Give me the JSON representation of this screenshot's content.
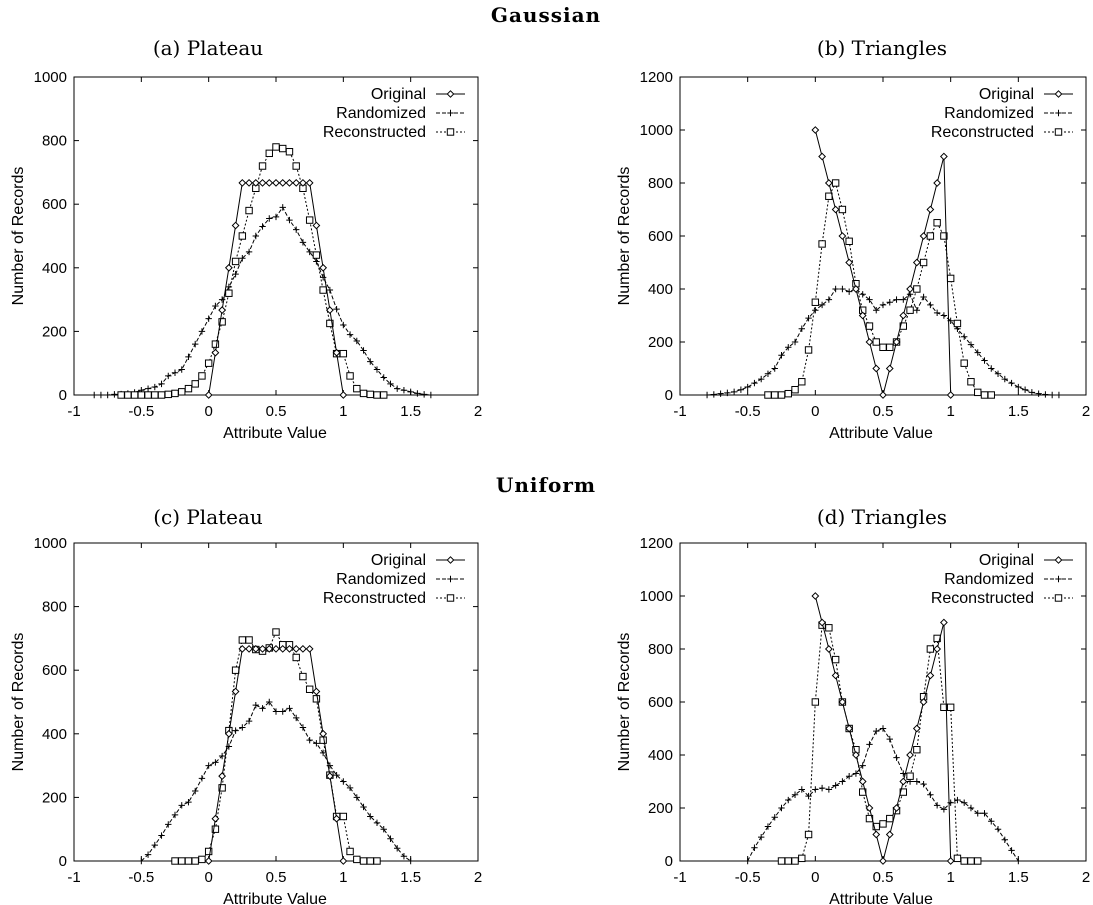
{
  "figure": {
    "section_titles": [
      "Gaussian",
      "Uniform"
    ]
  },
  "chart_data": [
    {
      "type": "line",
      "title": "(a) Plateau",
      "section": "Gaussian",
      "xlabel": "Attribute Value",
      "ylabel": "Number of Records",
      "xlim": [
        -1,
        2
      ],
      "ylim": [
        0,
        1000
      ],
      "xticks": [
        "-1",
        "-0.5",
        "0",
        "0.5",
        "1",
        "1.5",
        "2"
      ],
      "yticks": [
        "0",
        "200",
        "400",
        "600",
        "800",
        "1000"
      ],
      "legend_position": "top-right",
      "series": [
        {
          "name": "Original",
          "marker": "diamond",
          "dash": "solid",
          "x": [
            0,
            0.05,
            0.1,
            0.15,
            0.2,
            0.25,
            0.3,
            0.35,
            0.4,
            0.45,
            0.5,
            0.55,
            0.6,
            0.65,
            0.7,
            0.75,
            0.8,
            0.85,
            0.9,
            0.95,
            1.0
          ],
          "y": [
            0,
            133,
            267,
            400,
            533,
            667,
            667,
            667,
            667,
            667,
            667,
            667,
            667,
            667,
            667,
            667,
            533,
            400,
            267,
            133,
            0
          ]
        },
        {
          "name": "Randomized",
          "marker": "plus",
          "dash": "dashed",
          "x": [
            -0.85,
            -0.8,
            -0.75,
            -0.7,
            -0.65,
            -0.6,
            -0.55,
            -0.5,
            -0.45,
            -0.4,
            -0.35,
            -0.3,
            -0.25,
            -0.2,
            -0.15,
            -0.1,
            -0.05,
            0,
            0.05,
            0.1,
            0.15,
            0.2,
            0.25,
            0.3,
            0.35,
            0.4,
            0.45,
            0.5,
            0.55,
            0.6,
            0.65,
            0.7,
            0.75,
            0.8,
            0.85,
            0.9,
            0.95,
            1.0,
            1.05,
            1.1,
            1.15,
            1.2,
            1.25,
            1.3,
            1.35,
            1.4,
            1.45,
            1.5,
            1.55,
            1.6,
            1.65
          ],
          "y": [
            0,
            0,
            0,
            2,
            3,
            5,
            8,
            15,
            20,
            25,
            35,
            60,
            70,
            80,
            120,
            160,
            200,
            240,
            280,
            300,
            340,
            380,
            430,
            450,
            500,
            530,
            555,
            560,
            590,
            550,
            520,
            480,
            450,
            420,
            370,
            330,
            270,
            220,
            190,
            170,
            140,
            105,
            80,
            55,
            35,
            20,
            15,
            10,
            5,
            2,
            0
          ]
        },
        {
          "name": "Reconstructed",
          "marker": "square",
          "dash": "dotted",
          "x": [
            -0.65,
            -0.6,
            -0.55,
            -0.5,
            -0.45,
            -0.4,
            -0.35,
            -0.3,
            -0.25,
            -0.2,
            -0.15,
            -0.1,
            -0.05,
            0,
            0.05,
            0.1,
            0.15,
            0.2,
            0.25,
            0.3,
            0.35,
            0.4,
            0.45,
            0.5,
            0.55,
            0.6,
            0.65,
            0.7,
            0.75,
            0.8,
            0.85,
            0.9,
            0.95,
            1.0,
            1.05,
            1.1,
            1.15,
            1.2,
            1.25,
            1.3
          ],
          "y": [
            0,
            0,
            0,
            0,
            0,
            0,
            0,
            2,
            5,
            10,
            20,
            35,
            60,
            100,
            160,
            230,
            320,
            420,
            500,
            580,
            650,
            720,
            760,
            780,
            775,
            765,
            720,
            650,
            550,
            440,
            330,
            225,
            130,
            130,
            60,
            20,
            5,
            2,
            0,
            0
          ]
        }
      ]
    },
    {
      "type": "line",
      "title": "(b) Triangles",
      "section": "Gaussian",
      "xlabel": "Attribute Value",
      "ylabel": "Number of Records",
      "xlim": [
        -1,
        2
      ],
      "ylim": [
        0,
        1200
      ],
      "xticks": [
        "-1",
        "-0.5",
        "0",
        "0.5",
        "1",
        "1.5",
        "2"
      ],
      "yticks": [
        "0",
        "200",
        "400",
        "600",
        "800",
        "1000",
        "1200"
      ],
      "legend_position": "top-right",
      "series": [
        {
          "name": "Original",
          "marker": "diamond",
          "dash": "solid",
          "x": [
            0,
            0.05,
            0.1,
            0.15,
            0.2,
            0.25,
            0.3,
            0.35,
            0.4,
            0.45,
            0.5,
            0.55,
            0.6,
            0.65,
            0.7,
            0.75,
            0.8,
            0.85,
            0.9,
            0.95,
            1.0
          ],
          "y": [
            1000,
            900,
            800,
            700,
            600,
            500,
            400,
            300,
            200,
            100,
            0,
            100,
            200,
            300,
            400,
            500,
            600,
            700,
            800,
            900,
            0
          ]
        },
        {
          "name": "Randomized",
          "marker": "plus",
          "dash": "dashed",
          "x": [
            -0.8,
            -0.75,
            -0.7,
            -0.65,
            -0.6,
            -0.55,
            -0.5,
            -0.45,
            -0.4,
            -0.35,
            -0.3,
            -0.25,
            -0.2,
            -0.15,
            -0.1,
            -0.05,
            0,
            0.05,
            0.1,
            0.15,
            0.2,
            0.25,
            0.3,
            0.35,
            0.4,
            0.45,
            0.5,
            0.55,
            0.6,
            0.65,
            0.7,
            0.75,
            0.8,
            0.85,
            0.9,
            0.95,
            1.0,
            1.05,
            1.1,
            1.15,
            1.2,
            1.25,
            1.3,
            1.35,
            1.4,
            1.45,
            1.5,
            1.55,
            1.6,
            1.65,
            1.7,
            1.75,
            1.8
          ],
          "y": [
            0,
            2,
            5,
            8,
            12,
            20,
            30,
            45,
            60,
            80,
            100,
            150,
            180,
            200,
            250,
            290,
            320,
            340,
            360,
            400,
            400,
            390,
            400,
            380,
            360,
            320,
            340,
            350,
            360,
            360,
            380,
            320,
            370,
            340,
            310,
            300,
            280,
            250,
            220,
            190,
            160,
            130,
            100,
            80,
            60,
            45,
            30,
            20,
            10,
            5,
            2,
            0,
            0
          ]
        },
        {
          "name": "Reconstructed",
          "marker": "square",
          "dash": "dotted",
          "x": [
            -0.35,
            -0.3,
            -0.25,
            -0.2,
            -0.15,
            -0.1,
            -0.05,
            0,
            0.05,
            0.1,
            0.15,
            0.2,
            0.25,
            0.3,
            0.35,
            0.4,
            0.45,
            0.5,
            0.55,
            0.6,
            0.65,
            0.7,
            0.75,
            0.8,
            0.85,
            0.9,
            0.95,
            1.0,
            1.05,
            1.1,
            1.15,
            1.2,
            1.25,
            1.3
          ],
          "y": [
            0,
            0,
            0,
            5,
            20,
            50,
            170,
            350,
            570,
            750,
            800,
            700,
            580,
            420,
            320,
            260,
            200,
            180,
            180,
            200,
            260,
            320,
            400,
            500,
            600,
            650,
            600,
            440,
            270,
            120,
            50,
            10,
            0,
            0
          ]
        }
      ]
    },
    {
      "type": "line",
      "title": "(c) Plateau",
      "section": "Uniform",
      "xlabel": "Attribute Value",
      "ylabel": "Number of Records",
      "xlim": [
        -1,
        2
      ],
      "ylim": [
        0,
        1000
      ],
      "xticks": [
        "-1",
        "-0.5",
        "0",
        "0.5",
        "1",
        "1.5",
        "2"
      ],
      "yticks": [
        "0",
        "200",
        "400",
        "600",
        "800",
        "1000"
      ],
      "legend_position": "top-right",
      "series": [
        {
          "name": "Original",
          "marker": "diamond",
          "dash": "solid",
          "x": [
            0,
            0.05,
            0.1,
            0.15,
            0.2,
            0.25,
            0.3,
            0.35,
            0.4,
            0.45,
            0.5,
            0.55,
            0.6,
            0.65,
            0.7,
            0.75,
            0.8,
            0.85,
            0.9,
            0.95,
            1.0
          ],
          "y": [
            0,
            133,
            267,
            400,
            533,
            667,
            667,
            667,
            667,
            667,
            667,
            667,
            667,
            667,
            667,
            667,
            533,
            400,
            267,
            133,
            0
          ]
        },
        {
          "name": "Randomized",
          "marker": "plus",
          "dash": "dashed",
          "x": [
            -0.5,
            -0.45,
            -0.4,
            -0.35,
            -0.3,
            -0.25,
            -0.2,
            -0.15,
            -0.1,
            -0.05,
            0,
            0.05,
            0.1,
            0.15,
            0.2,
            0.25,
            0.3,
            0.35,
            0.4,
            0.45,
            0.5,
            0.55,
            0.6,
            0.65,
            0.7,
            0.75,
            0.8,
            0.85,
            0.9,
            0.95,
            1.0,
            1.05,
            1.1,
            1.15,
            1.2,
            1.25,
            1.3,
            1.35,
            1.4,
            1.45,
            1.5
          ],
          "y": [
            0,
            20,
            50,
            80,
            115,
            145,
            175,
            185,
            220,
            260,
            300,
            310,
            330,
            360,
            410,
            420,
            440,
            490,
            480,
            500,
            470,
            470,
            480,
            450,
            420,
            380,
            370,
            340,
            300,
            270,
            250,
            230,
            200,
            170,
            140,
            120,
            100,
            70,
            40,
            15,
            0
          ]
        },
        {
          "name": "Reconstructed",
          "marker": "square",
          "dash": "dotted",
          "x": [
            -0.25,
            -0.2,
            -0.15,
            -0.1,
            -0.05,
            0,
            0.05,
            0.1,
            0.15,
            0.2,
            0.25,
            0.3,
            0.35,
            0.4,
            0.45,
            0.5,
            0.55,
            0.6,
            0.65,
            0.7,
            0.75,
            0.8,
            0.85,
            0.9,
            0.95,
            1.0,
            1.05,
            1.1,
            1.15,
            1.2,
            1.25
          ],
          "y": [
            0,
            0,
            0,
            0,
            5,
            30,
            100,
            230,
            410,
            600,
            695,
            695,
            665,
            660,
            670,
            720,
            680,
            680,
            640,
            580,
            540,
            510,
            380,
            270,
            140,
            140,
            30,
            5,
            0,
            0,
            0
          ]
        }
      ]
    },
    {
      "type": "line",
      "title": "(d) Triangles",
      "section": "Uniform",
      "xlabel": "Attribute Value",
      "ylabel": "Number of Records",
      "xlim": [
        -1,
        2
      ],
      "ylim": [
        0,
        1200
      ],
      "xticks": [
        "-1",
        "-0.5",
        "0",
        "0.5",
        "1",
        "1.5",
        "2"
      ],
      "yticks": [
        "0",
        "200",
        "400",
        "600",
        "800",
        "1000",
        "1200"
      ],
      "legend_position": "top-right",
      "series": [
        {
          "name": "Original",
          "marker": "diamond",
          "dash": "solid",
          "x": [
            0,
            0.05,
            0.1,
            0.15,
            0.2,
            0.25,
            0.3,
            0.35,
            0.4,
            0.45,
            0.5,
            0.55,
            0.6,
            0.65,
            0.7,
            0.75,
            0.8,
            0.85,
            0.9,
            0.95,
            1.0
          ],
          "y": [
            1000,
            900,
            800,
            700,
            600,
            500,
            400,
            300,
            200,
            100,
            0,
            100,
            200,
            300,
            400,
            500,
            600,
            700,
            800,
            900,
            0
          ]
        },
        {
          "name": "Randomized",
          "marker": "plus",
          "dash": "dashed",
          "x": [
            -0.5,
            -0.45,
            -0.4,
            -0.35,
            -0.3,
            -0.25,
            -0.2,
            -0.15,
            -0.1,
            -0.05,
            0,
            0.05,
            0.1,
            0.15,
            0.2,
            0.25,
            0.3,
            0.35,
            0.4,
            0.45,
            0.5,
            0.55,
            0.6,
            0.65,
            0.7,
            0.75,
            0.8,
            0.85,
            0.9,
            0.95,
            1.0,
            1.05,
            1.1,
            1.15,
            1.2,
            1.25,
            1.3,
            1.35,
            1.4,
            1.45,
            1.5
          ],
          "y": [
            0,
            50,
            90,
            130,
            165,
            200,
            230,
            250,
            270,
            245,
            270,
            275,
            270,
            285,
            300,
            320,
            330,
            360,
            440,
            490,
            500,
            460,
            390,
            330,
            300,
            300,
            290,
            250,
            210,
            195,
            220,
            230,
            220,
            200,
            180,
            180,
            150,
            120,
            80,
            40,
            0
          ]
        },
        {
          "name": "Reconstructed",
          "marker": "square",
          "dash": "dotted",
          "x": [
            -0.25,
            -0.2,
            -0.15,
            -0.1,
            -0.05,
            0,
            0.05,
            0.1,
            0.15,
            0.2,
            0.25,
            0.3,
            0.35,
            0.4,
            0.45,
            0.5,
            0.55,
            0.6,
            0.65,
            0.7,
            0.75,
            0.8,
            0.85,
            0.9,
            0.95,
            1.0,
            1.05,
            1.1,
            1.15,
            1.2
          ],
          "y": [
            0,
            0,
            0,
            10,
            100,
            600,
            890,
            880,
            760,
            600,
            500,
            420,
            260,
            160,
            130,
            140,
            160,
            190,
            260,
            320,
            420,
            620,
            800,
            840,
            580,
            580,
            10,
            0,
            0,
            0
          ]
        }
      ]
    }
  ]
}
